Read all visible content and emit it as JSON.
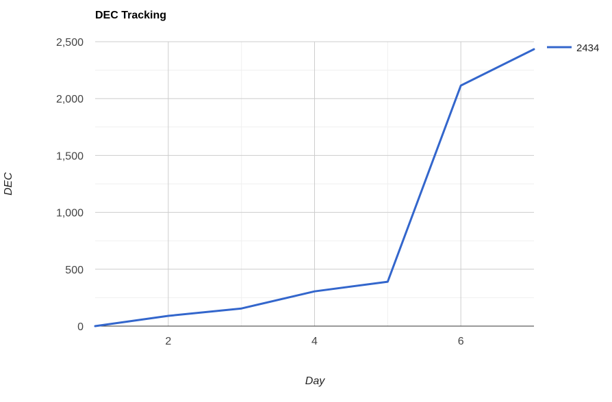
{
  "chart_data": {
    "type": "line",
    "title": "DEC Tracking",
    "xlabel": "Day",
    "ylabel": "DEC",
    "xlim": [
      1,
      7
    ],
    "ylim": [
      0,
      2500
    ],
    "x_ticks": [
      2,
      4,
      6
    ],
    "x_tick_labels": [
      "2",
      "4",
      "6"
    ],
    "y_ticks": [
      0,
      500,
      1000,
      1500,
      2000,
      2500
    ],
    "y_tick_labels": [
      "0",
      "500",
      "1,000",
      "1,500",
      "2,000",
      "2,500"
    ],
    "grid": true,
    "legend_position": "right",
    "series": [
      {
        "name": "2434",
        "color": "#3366cc",
        "x": [
          1,
          2,
          3,
          4,
          5,
          6,
          7
        ],
        "values": [
          0,
          90,
          155,
          305,
          390,
          2115,
          2434
        ]
      }
    ]
  }
}
